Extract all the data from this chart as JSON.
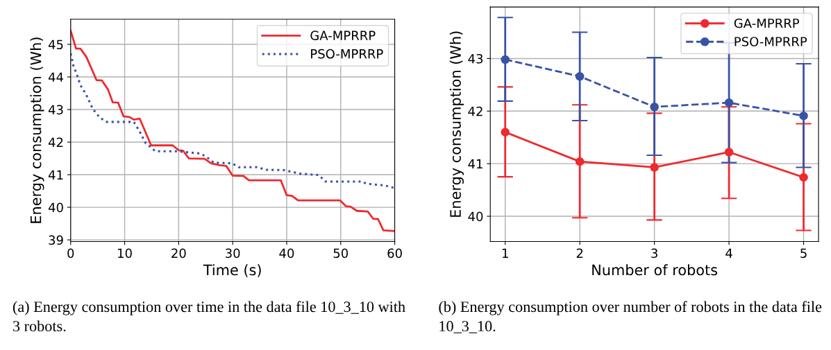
{
  "chart_data": [
    {
      "type": "line",
      "xlabel": "Time (s)",
      "ylabel": "Energy consumption (Wh)",
      "xlim": [
        0,
        60
      ],
      "xticks": [
        0,
        10,
        20,
        30,
        40,
        50,
        60
      ],
      "ylim": [
        38.95,
        45.77
      ],
      "yticks": [
        39,
        40,
        41,
        42,
        43,
        44,
        45
      ],
      "grid": true,
      "legend": "top right",
      "annotations": [
        "(a) Energy consumption over time in the data file 10_3_10 with 3 robots."
      ],
      "series": [
        {
          "name": "GA-MPRRP",
          "color": "#ee2a2e",
          "line_style": "solid",
          "marker": "none",
          "x": [
            0,
            1,
            1.8,
            2.9,
            4.8,
            5.8,
            6.9,
            7.8,
            8.8,
            9.8,
            10.9,
            11.7,
            12.8,
            14.9,
            18.9,
            20,
            20.8,
            21.9,
            24.8,
            26,
            27.6,
            28.8,
            30,
            32,
            33,
            38.9,
            40,
            41,
            42.1,
            49.9,
            51,
            51.8,
            53,
            55,
            56,
            56.9,
            57.9,
            60
          ],
          "values": [
            45.42,
            44.87,
            44.87,
            44.62,
            43.9,
            43.89,
            43.62,
            43.22,
            43.21,
            42.79,
            42.77,
            42.69,
            42.72,
            41.9,
            41.9,
            41.75,
            41.74,
            41.5,
            41.49,
            41.35,
            41.29,
            41.27,
            40.97,
            40.96,
            40.83,
            40.83,
            40.37,
            40.35,
            40.21,
            40.21,
            40.03,
            40.02,
            39.89,
            39.87,
            39.65,
            39.64,
            39.29,
            39.27
          ]
        },
        {
          "name": "PSO-MPRRP",
          "color": "#3953a4",
          "line_style": "dotted",
          "marker": "none",
          "x": [
            0,
            0.5,
            1.2,
            1.8,
            2.9,
            4.1,
            5.4,
            6.7,
            11.7,
            12.8,
            13.8,
            15.7,
            19.7,
            21.4,
            24,
            25.2,
            26.5,
            29.9,
            31.1,
            34.5,
            36.2,
            39.6,
            42.5,
            45.9,
            47.2,
            53.9,
            54.8,
            58.1,
            60
          ],
          "values": [
            44.72,
            44.35,
            44.05,
            43.75,
            43.45,
            43.02,
            42.75,
            42.62,
            42.62,
            42.32,
            41.99,
            41.72,
            41.72,
            41.69,
            41.65,
            41.54,
            41.37,
            41.35,
            41.23,
            41.23,
            41.15,
            41.14,
            41.03,
            40.99,
            40.79,
            40.79,
            40.72,
            40.67,
            40.59
          ]
        }
      ]
    },
    {
      "type": "line",
      "xlabel": "Number of robots",
      "ylabel": "Energy consumption (Wh)",
      "xlim": [
        0.8,
        5.2
      ],
      "xticks": [
        1,
        2,
        3,
        4,
        5
      ],
      "ylim": [
        39.52,
        43.98
      ],
      "yticks": [
        40,
        41,
        42,
        43
      ],
      "grid": true,
      "legend": "top right",
      "annotations": [
        "(b) Energy consumption over number of robots in the data file 10_3_10."
      ],
      "series": [
        {
          "name": "GA-MPRRP",
          "color": "#ee2a2e",
          "line_style": "solid",
          "marker": "circle",
          "x": [
            1,
            2,
            3,
            4,
            5
          ],
          "values": [
            41.6,
            41.04,
            40.93,
            41.22,
            40.74
          ],
          "errors": [
            [
              40.75,
              42.46
            ],
            [
              39.97,
              42.12
            ],
            [
              39.93,
              41.96
            ],
            [
              40.34,
              42.08
            ],
            [
              39.73,
              41.76
            ]
          ]
        },
        {
          "name": "PSO-MPRRP",
          "color": "#3953a4",
          "line_style": "dashed",
          "marker": "circle",
          "x": [
            1,
            2,
            3,
            4,
            5
          ],
          "values": [
            42.98,
            42.66,
            42.08,
            42.16,
            41.91
          ],
          "errors": [
            [
              42.19,
              43.78
            ],
            [
              41.82,
              43.5
            ],
            [
              41.16,
              43.02
            ],
            [
              41.02,
              43.3
            ],
            [
              40.93,
              42.9
            ]
          ]
        }
      ]
    }
  ]
}
